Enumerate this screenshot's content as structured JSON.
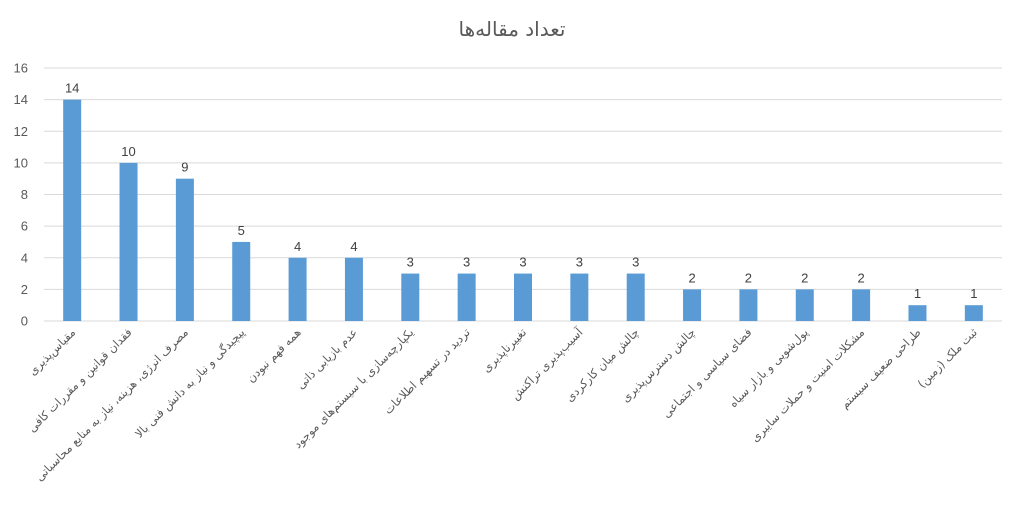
{
  "chart_data": {
    "type": "bar",
    "title": "تعداد مقاله‌ها",
    "categories": [
      "مقیاس‌پذیری",
      "فقدان قوانین و مقررات کافی",
      "مصرف انرژی، هزینه، نیاز به منابع محاسباتی",
      "پیچیدگی و نیاز به دانش فنی بالا",
      "همه فهم نبودن",
      "عدم بازیابی ذاتی",
      "یکپارچه‌سازی با سیستم‌های موجود",
      "تردید در تسهیم اطلاعات",
      "تغییرناپذیری",
      "آسیب‌پذیری تراکنش",
      "چالش میان کارکردی",
      "چالش دسترس‌پذیری",
      "فضای سیاسی و اجتماعی",
      "پول‌شویی و بازار سیاه",
      "مشکلات امنیت و حملات سایبری",
      "طراحی ضعیف سیستم",
      "ثبت ملک (زمین)"
    ],
    "values": [
      14,
      10,
      9,
      5,
      4,
      4,
      3,
      3,
      3,
      3,
      3,
      2,
      2,
      2,
      2,
      1,
      1
    ],
    "ylim": [
      0,
      16
    ],
    "yticks": [
      0,
      2,
      4,
      6,
      8,
      10,
      12,
      14,
      16
    ],
    "grid": true,
    "legend": "none",
    "bar_color": "#5b9bd5",
    "data_labels": true,
    "xlabel": "",
    "ylabel": ""
  }
}
